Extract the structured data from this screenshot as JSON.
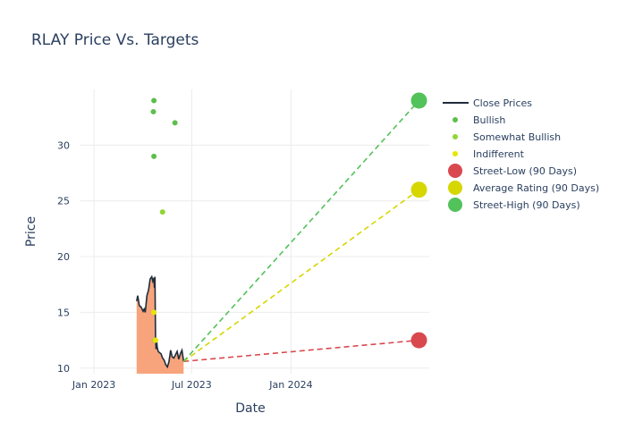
{
  "chart_data": {
    "type": "line",
    "title": "RLAY Price Vs. Targets",
    "xlabel": "Date",
    "ylabel": "Price",
    "x_axis": {
      "start": "2022-12-07",
      "end": "2024-09-13",
      "ticks": [
        {
          "date": "2023-01-01",
          "label": "Jan 2023"
        },
        {
          "date": "2023-07-01",
          "label": "Jul 2023"
        },
        {
          "date": "2024-01-01",
          "label": "Jan 2024"
        }
      ]
    },
    "y_axis": {
      "range": [
        9.5,
        35
      ],
      "ticks": [
        10,
        15,
        20,
        25,
        30
      ]
    },
    "close_prices": {
      "name": "Close Prices",
      "color": "#1f2d3d",
      "fill_color": "#f7a47c",
      "dates": [
        "2023-03-21",
        "2023-03-23",
        "2023-03-26",
        "2023-03-29",
        "2023-04-02",
        "2023-04-04",
        "2023-04-06",
        "2023-04-09",
        "2023-04-12",
        "2023-04-15",
        "2023-04-18",
        "2023-04-20",
        "2023-04-22",
        "2023-04-23",
        "2023-04-24",
        "2023-04-25",
        "2023-04-26",
        "2023-04-27",
        "2023-04-28",
        "2023-04-30",
        "2023-05-02",
        "2023-05-05",
        "2023-05-08",
        "2023-05-11",
        "2023-05-14",
        "2023-05-17",
        "2023-05-20",
        "2023-05-23",
        "2023-05-26",
        "2023-05-29",
        "2023-06-01",
        "2023-06-04",
        "2023-06-07",
        "2023-06-10",
        "2023-06-13",
        "2023-06-16"
      ],
      "values": [
        16.0,
        16.5,
        15.6,
        15.5,
        15.1,
        15.3,
        15.0,
        16.5,
        17.0,
        18.0,
        18.2,
        17.8,
        18.1,
        17.2,
        18.2,
        12.8,
        11.7,
        12.6,
        11.9,
        11.5,
        11.4,
        11.3,
        10.9,
        10.7,
        10.3,
        10.1,
        10.6,
        11.6,
        11.0,
        10.9,
        11.2,
        11.5,
        10.8,
        11.3,
        11.6,
        10.6
      ]
    },
    "analyst_ratings": [
      {
        "category": "Bullish",
        "color": "#5cbf4a",
        "points": [
          {
            "date": "2023-04-22",
            "value": 34
          },
          {
            "date": "2023-04-21",
            "value": 33
          },
          {
            "date": "2023-04-22",
            "value": 29
          },
          {
            "date": "2023-05-31",
            "value": 32
          }
        ]
      },
      {
        "category": "Somewhat Bullish",
        "color": "#8fd633",
        "points": [
          {
            "date": "2023-05-08",
            "value": 24
          },
          {
            "date": "2023-04-24",
            "value": 12.5
          }
        ]
      },
      {
        "category": "Indifferent",
        "color": "#e6e600",
        "points": [
          {
            "date": "2023-04-22",
            "value": 15
          },
          {
            "date": "2023-04-25",
            "value": 12.5
          }
        ]
      }
    ],
    "targets": {
      "start": {
        "date": "2023-06-16",
        "value": 10.6
      },
      "end_date": "2024-08-25",
      "series": [
        {
          "name": "Street-Low (90 Days)",
          "color": "#d9484e",
          "value": 12.5
        },
        {
          "name": "Average Rating (90 Days)",
          "color": "#d6d600",
          "value": 26
        },
        {
          "name": "Street-High (90 Days)",
          "color": "#52c25a",
          "value": 34
        }
      ]
    },
    "legend": {
      "position": "right",
      "items": [
        {
          "label": "Close Prices",
          "kind": "line",
          "color": "#1f2d3d"
        },
        {
          "label": "Bullish",
          "kind": "small-dot",
          "color": "#5cbf4a"
        },
        {
          "label": "Somewhat Bullish",
          "kind": "small-dot",
          "color": "#8fd633"
        },
        {
          "label": "Indifferent",
          "kind": "small-dot",
          "color": "#e6e600"
        },
        {
          "label": "Street-Low (90 Days)",
          "kind": "big-dot",
          "color": "#d9484e"
        },
        {
          "label": "Average Rating (90 Days)",
          "kind": "big-dot",
          "color": "#d6d600"
        },
        {
          "label": "Street-High (90 Days)",
          "kind": "big-dot",
          "color": "#52c25a"
        }
      ]
    }
  }
}
